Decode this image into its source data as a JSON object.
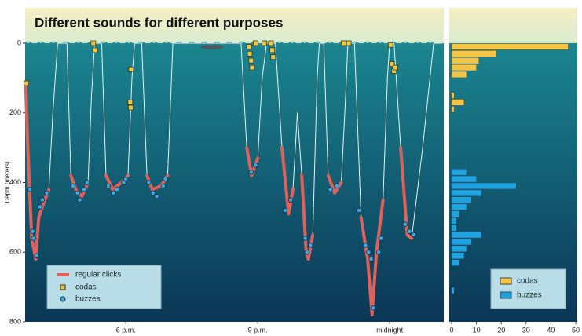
{
  "chart_data": [
    {
      "type": "line",
      "title": "Different sounds for different purposes",
      "ylabel": "Depth (meters)",
      "xlim": [
        15.71,
        25.23
      ],
      "xticks": [
        {
          "value": 18,
          "label": "6 p.m."
        },
        {
          "value": 21,
          "label": "9 p.m."
        },
        {
          "value": 24,
          "label": "midnight"
        }
      ],
      "ylim": [
        0,
        800
      ],
      "yticks": [
        0,
        200,
        400,
        600,
        800
      ],
      "track": {
        "color": "#e8f2f2",
        "x": [
          15.72,
          15.77,
          15.86,
          15.95,
          16.02,
          16.13,
          16.25,
          16.34,
          16.45,
          16.66,
          16.75,
          16.86,
          17.0,
          17.14,
          17.22,
          17.29,
          17.45,
          17.55,
          17.7,
          17.9,
          18.05,
          18.14,
          18.2,
          18.36,
          18.48,
          18.6,
          18.8,
          18.95,
          19.07,
          20.62,
          20.75,
          20.86,
          21.0,
          21.1,
          21.2,
          21.4,
          21.55,
          21.7,
          21.8,
          21.9,
          22.0,
          22.1,
          22.15,
          22.25,
          22.35,
          22.4,
          22.5,
          22.6,
          22.75,
          22.9,
          23.0,
          23.05,
          23.2,
          23.35,
          23.5,
          23.6,
          23.7,
          23.85,
          23.95,
          24.0,
          24.1,
          24.25,
          24.4,
          24.5,
          24.75,
          25.0,
          25.2
        ],
        "values": [
          115,
          300,
          560,
          620,
          500,
          460,
          420,
          200,
          0,
          0,
          380,
          420,
          440,
          400,
          150,
          0,
          0,
          380,
          420,
          400,
          380,
          100,
          0,
          0,
          380,
          420,
          410,
          380,
          0,
          0,
          300,
          380,
          330,
          100,
          0,
          0,
          300,
          490,
          420,
          200,
          380,
          600,
          620,
          550,
          100,
          0,
          0,
          380,
          430,
          400,
          150,
          0,
          0,
          500,
          620,
          780,
          600,
          450,
          100,
          0,
          0,
          300,
          550,
          560,
          300,
          0,
          0
        ]
      },
      "series": [
        {
          "name": "regular clicks",
          "color": "#e2605a",
          "marker": "line",
          "x": [
            15.72,
            15.77,
            15.86,
            15.95,
            16.02,
            16.13,
            16.25,
            16.34,
            16.45,
            16.66,
            16.75,
            16.86,
            17.0,
            17.14,
            17.22,
            17.29,
            17.45,
            17.55,
            17.7,
            17.9,
            18.05,
            18.14,
            18.2,
            18.36,
            18.48,
            18.6,
            18.8,
            18.95,
            19.07,
            20.62,
            20.75,
            20.86,
            21.0,
            21.1,
            21.2,
            21.4,
            21.55,
            21.7,
            21.8,
            21.9,
            22.0,
            22.1,
            22.15,
            22.25,
            22.35,
            22.4,
            22.5,
            22.6,
            22.75,
            22.9,
            23.0,
            23.05,
            23.2,
            23.35,
            23.5,
            23.6,
            23.7,
            23.85,
            23.95,
            24.0,
            24.1,
            24.25,
            24.4,
            24.5,
            24.75,
            25.0,
            25.2
          ],
          "values": [
            115,
            300,
            560,
            620,
            500,
            460,
            420,
            null,
            null,
            null,
            380,
            420,
            440,
            400,
            null,
            null,
            null,
            380,
            420,
            400,
            380,
            null,
            null,
            null,
            380,
            420,
            410,
            380,
            null,
            null,
            300,
            380,
            330,
            null,
            null,
            null,
            300,
            490,
            420,
            null,
            380,
            600,
            620,
            550,
            null,
            null,
            null,
            380,
            430,
            400,
            null,
            null,
            null,
            500,
            620,
            780,
            600,
            450,
            null,
            null,
            null,
            300,
            550,
            560,
            null,
            null,
            null
          ]
        },
        {
          "name": "codas",
          "color": "#f4c542",
          "marker": "square",
          "x": [
            15.74,
            17.26,
            17.3,
            18.12,
            18.1,
            18.11,
            23.07,
            20.8,
            20.82,
            20.85,
            20.87,
            20.95,
            21.15,
            21.3,
            21.33,
            21.35,
            22.95,
            24.02,
            24.05,
            24.1,
            24.13
          ],
          "values": [
            115,
            0,
            20,
            75,
            170,
            185,
            0,
            10,
            30,
            50,
            70,
            0,
            0,
            0,
            20,
            40,
            0,
            5,
            60,
            80,
            70
          ]
        },
        {
          "name": "buzzes",
          "color": "#3aa8dc",
          "marker": "circle",
          "x": [
            15.82,
            15.88,
            15.9,
            15.97,
            16.05,
            16.1,
            16.2,
            16.8,
            16.9,
            16.95,
            17.05,
            17.12,
            17.6,
            17.72,
            17.8,
            17.95,
            18.0,
            18.52,
            18.62,
            18.7,
            18.85,
            18.9,
            20.85,
            20.95,
            21.62,
            21.75,
            22.08,
            22.12,
            22.2,
            22.65,
            22.8,
            23.3,
            23.45,
            23.52,
            23.58,
            23.62,
            23.75,
            23.8,
            24.35,
            24.45,
            24.55
          ],
          "values": [
            420,
            540,
            560,
            610,
            470,
            450,
            430,
            410,
            430,
            450,
            420,
            400,
            410,
            430,
            420,
            400,
            390,
            400,
            430,
            440,
            410,
            390,
            370,
            350,
            480,
            450,
            560,
            600,
            580,
            420,
            410,
            480,
            580,
            600,
            620,
            760,
            600,
            560,
            520,
            540,
            550
          ]
        }
      ]
    },
    {
      "type": "histogram",
      "orientation": "horizontal",
      "bins": [
        0,
        20,
        40,
        60,
        80,
        100,
        120,
        140,
        160,
        180,
        200,
        220,
        240,
        260,
        280,
        300,
        320,
        340,
        360,
        380,
        400,
        420,
        440,
        460,
        480,
        500,
        520,
        540,
        560,
        580,
        600,
        620,
        640,
        660,
        680,
        700,
        720,
        740,
        760,
        780,
        800
      ],
      "ylim": [
        0,
        800
      ],
      "xlim": [
        0,
        50
      ],
      "xticks": [
        0,
        10,
        20,
        30,
        40,
        50
      ],
      "series": [
        {
          "name": "codas",
          "color": "#f4c542",
          "values": [
            47,
            18,
            11,
            10,
            6,
            0,
            0,
            1,
            5,
            1,
            0,
            0,
            0,
            0,
            0,
            0,
            0,
            0,
            0,
            0,
            0,
            0,
            0,
            0,
            0,
            0,
            0,
            0,
            0,
            0,
            0,
            0,
            0,
            0,
            0,
            0,
            0,
            0,
            0,
            0
          ]
        },
        {
          "name": "buzzes",
          "color": "#1fa3e0",
          "values": [
            0,
            0,
            0,
            0,
            0,
            0,
            0,
            0,
            0,
            0,
            0,
            0,
            0,
            0,
            0,
            0,
            0,
            0,
            6,
            10,
            26,
            12,
            8,
            6,
            3,
            2,
            2,
            12,
            8,
            6,
            5,
            3,
            0,
            0,
            0,
            1,
            0,
            0,
            0,
            0
          ]
        }
      ]
    }
  ]
}
